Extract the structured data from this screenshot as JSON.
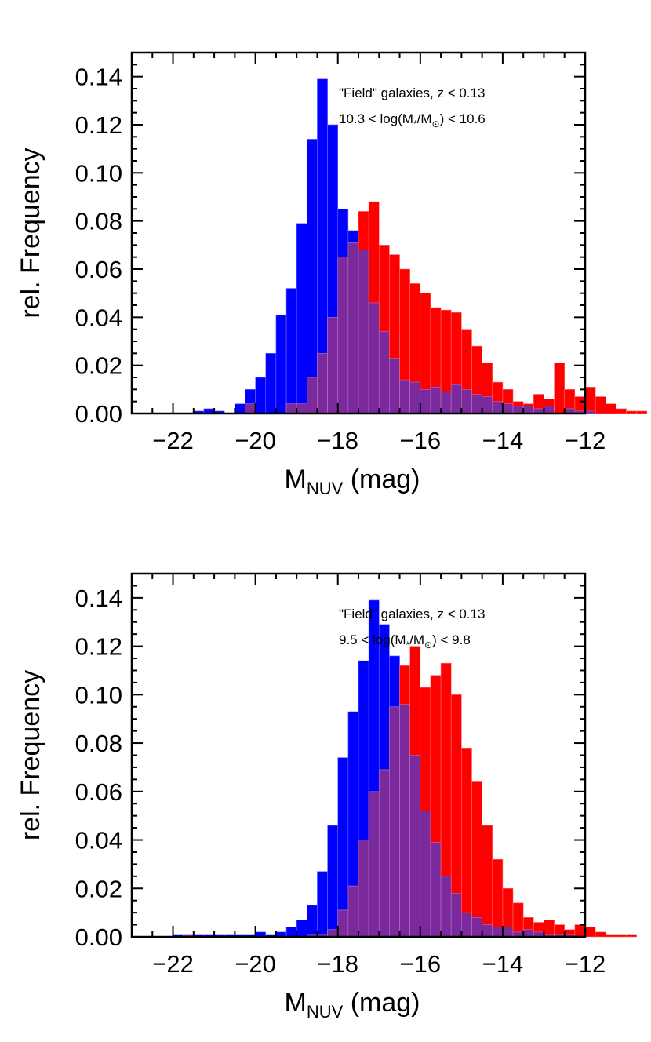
{
  "colors": {
    "blue": "#0000ff",
    "red": "#ff0000",
    "overlap": "#7a2a9c",
    "axis": "#000000"
  },
  "chart_data": [
    {
      "type": "bar",
      "title": "",
      "annotation": {
        "line1": "\"Field\" galaxies, z < 0.13",
        "line2_prefix": "10.3 < log(M",
        "line2_sub1": "*",
        "line2_mid": "/M",
        "line2_sub2": "⊙",
        "line2_suffix": ") < 10.6"
      },
      "xlabel": {
        "main": "M",
        "sub": "NUV",
        "unit": " (mag)"
      },
      "ylabel": "rel. Frequency",
      "xlim": [
        -23,
        -12
      ],
      "ylim": [
        0,
        0.15
      ],
      "xticks": [
        "−22",
        "−20",
        "−18",
        "−16",
        "−14",
        "−12"
      ],
      "xtick_values": [
        -22,
        -20,
        -18,
        -16,
        -14,
        -12
      ],
      "yticks": [
        "0.00",
        "0.02",
        "0.04",
        "0.06",
        "0.08",
        "0.10",
        "0.12",
        "0.14"
      ],
      "ytick_values": [
        0,
        0.02,
        0.04,
        0.06,
        0.08,
        0.1,
        0.12,
        0.14
      ],
      "bin_start": -22,
      "bin_width": 0.25,
      "series": [
        {
          "name": "blue",
          "values": [
            0,
            0,
            0.001,
            0.002,
            0.001,
            0,
            0.004,
            0.01,
            0.015,
            0.025,
            0.041,
            0.052,
            0.079,
            0.114,
            0.139,
            0.12,
            0.085,
            0.076,
            0.068,
            0.046,
            0.034,
            0.023,
            0.014,
            0.013,
            0.01,
            0.011,
            0.009,
            0.012,
            0.01,
            0.008,
            0.007,
            0.005,
            0.004,
            0.003,
            0.003,
            0.002,
            0.003,
            0,
            0.002,
            0.001,
            0.001,
            0,
            0,
            0,
            0,
            0
          ]
        },
        {
          "name": "red",
          "values": [
            0,
            0,
            0,
            0,
            0,
            0,
            0,
            0.004,
            0,
            0,
            0,
            0.004,
            0.004,
            0.015,
            0.025,
            0.04,
            0.065,
            0.071,
            0.084,
            0.088,
            0.07,
            0.066,
            0.06,
            0.054,
            0.05,
            0.044,
            0.043,
            0.042,
            0.035,
            0.028,
            0.021,
            0.013,
            0.01,
            0.005,
            0.004,
            0.008,
            0.006,
            0.021,
            0.01,
            0.007,
            0.011,
            0.007,
            0.004,
            0.002,
            0.001,
            0.001
          ]
        }
      ]
    },
    {
      "type": "bar",
      "title": "",
      "annotation": {
        "line1": "\"Field\" galaxies, z < 0.13",
        "line2_prefix": "9.5 < log(M",
        "line2_sub1": "*",
        "line2_mid": "/M",
        "line2_sub2": "⊙",
        "line2_suffix": ") < 9.8"
      },
      "xlabel": {
        "main": "M",
        "sub": "NUV",
        "unit": " (mag)"
      },
      "ylabel": "rel. Frequency",
      "xlim": [
        -23,
        -12
      ],
      "ylim": [
        0,
        0.15
      ],
      "xticks": [
        "−22",
        "−20",
        "−18",
        "−16",
        "−14",
        "−12"
      ],
      "xtick_values": [
        -22,
        -20,
        -18,
        -16,
        -14,
        -12
      ],
      "yticks": [
        "0.00",
        "0.02",
        "0.04",
        "0.06",
        "0.08",
        "0.10",
        "0.12",
        "0.14"
      ],
      "ytick_values": [
        0,
        0.02,
        0.04,
        0.06,
        0.08,
        0.1,
        0.12,
        0.14
      ],
      "bin_start": -22,
      "bin_width": 0.25,
      "series": [
        {
          "name": "blue",
          "values": [
            0.001,
            0.001,
            0.001,
            0.001,
            0.001,
            0.001,
            0.001,
            0.001,
            0.002,
            0.001,
            0.002,
            0.004,
            0.007,
            0.013,
            0.027,
            0.046,
            0.074,
            0.093,
            0.114,
            0.139,
            0.129,
            0.116,
            0.096,
            0.075,
            0.052,
            0.039,
            0.025,
            0.018,
            0.01,
            0.008,
            0.005,
            0.004,
            0.004,
            0.002,
            0.003,
            0.002,
            0.001,
            0.001,
            0.001,
            0,
            0,
            0,
            0,
            0,
            0
          ]
        },
        {
          "name": "red",
          "values": [
            0,
            0.001,
            0,
            0,
            0,
            0,
            0,
            0,
            0,
            0,
            0,
            0,
            0,
            0.001,
            0.001,
            0.003,
            0.011,
            0.021,
            0.04,
            0.06,
            0.069,
            0.095,
            0.112,
            0.12,
            0.103,
            0.108,
            0.113,
            0.1,
            0.078,
            0.064,
            0.046,
            0.032,
            0.02,
            0.014,
            0.008,
            0.006,
            0.007,
            0.005,
            0.003,
            0.005,
            0.004,
            0.002,
            0.001,
            0.001,
            0.001
          ]
        }
      ]
    }
  ]
}
